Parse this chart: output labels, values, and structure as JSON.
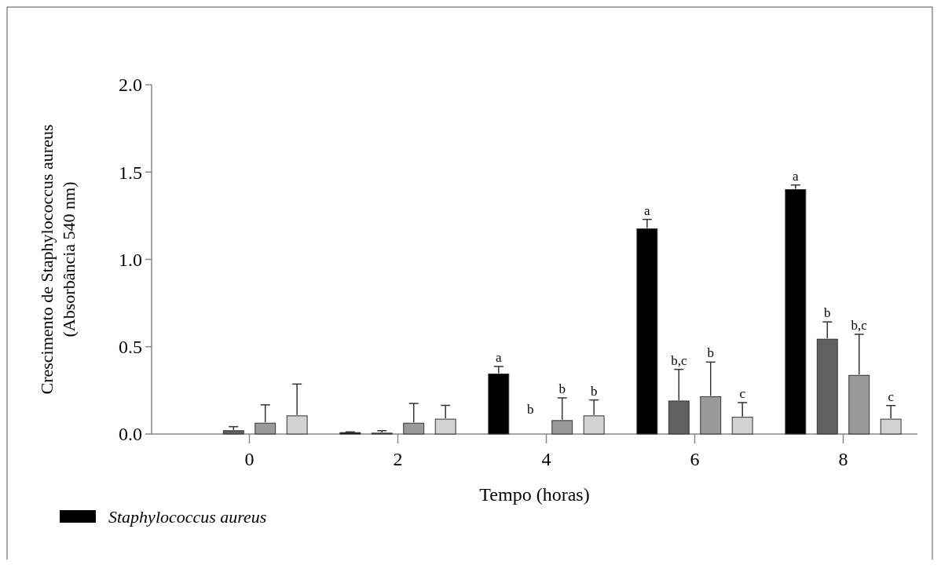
{
  "chart_data": {
    "type": "bar",
    "xlabel": "Tempo (horas)",
    "ylabel": "Crescimento de Staphylococcus aureus\n(Absorbância 540 nm)",
    "categories": [
      "0",
      "2",
      "4",
      "6",
      "8"
    ],
    "ylim": [
      0,
      2
    ],
    "yticks": [
      {
        "value": 0,
        "label": "0.0"
      },
      {
        "value": 0.5,
        "label": "0.5"
      },
      {
        "value": 1,
        "label": "1.0"
      },
      {
        "value": 1.5,
        "label": "1.5"
      },
      {
        "value": 2,
        "label": "2.0"
      }
    ],
    "grid": false,
    "annotations": [
      "b"
    ],
    "legend": "bottom left",
    "series": [
      {
        "name": "Staphylococcus aureus",
        "color": "#000000",
        "values": [
          null,
          0.008,
          0.344,
          1.175,
          1.4
        ],
        "errors": [
          null,
          0.004,
          0.043,
          0.054,
          0.026
        ],
        "value_labels": [
          null,
          null,
          "a",
          "a",
          "a"
        ]
      },
      {
        "color": "#606060",
        "values": [
          0.019,
          0.005,
          0,
          0.189,
          0.543
        ],
        "errors": [
          0.023,
          0.014,
          null,
          0.181,
          0.099
        ],
        "value_labels": [
          null,
          null,
          null,
          "b,c",
          "b"
        ]
      },
      {
        "color": "#9a9a9a",
        "values": [
          0.062,
          0.062,
          0.077,
          0.214,
          0.336
        ],
        "errors": [
          0.105,
          0.113,
          0.13,
          0.198,
          0.235
        ],
        "value_labels": [
          null,
          null,
          "b",
          "b",
          "b,c"
        ]
      },
      {
        "color": "#d2d2d2",
        "values": [
          0.104,
          0.085,
          0.104,
          0.096,
          0.085
        ],
        "errors": [
          0.182,
          0.079,
          0.091,
          0.084,
          0.078
        ],
        "value_labels": [
          null,
          null,
          "b",
          "c",
          "c"
        ]
      }
    ]
  }
}
